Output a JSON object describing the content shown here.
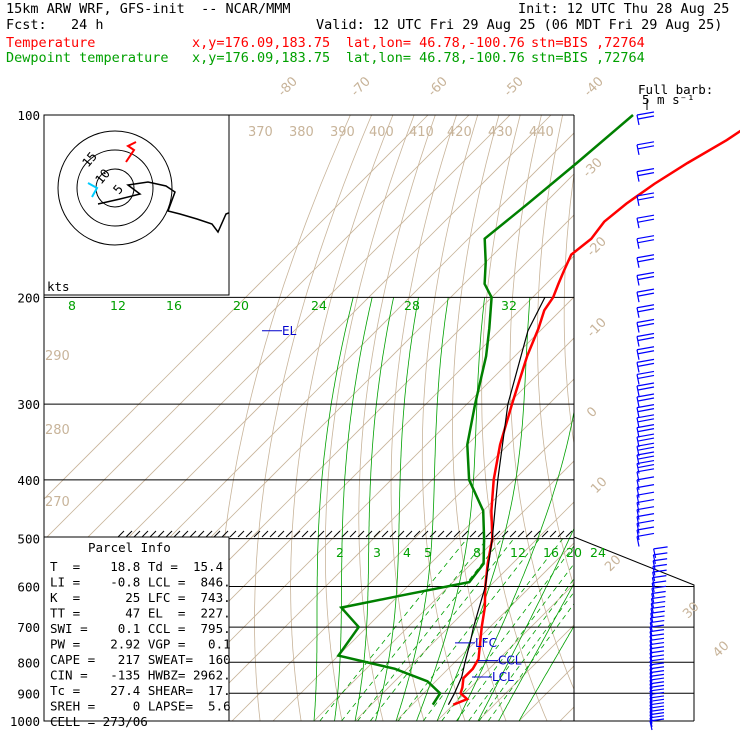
{
  "header": {
    "model": "15km ARW WRF, GFS-init  -- NCAR/MMM",
    "init": "Init: 12 UTC Thu 28 Aug 25",
    "fcst": "Fcst:   24 h",
    "valid": "Valid: 12 UTC Fri 29 Aug 25 (06 MDT Fri 29 Aug 25)",
    "temp_line": {
      "label": "Temperature",
      "xy": "x,y=176.09,183.75",
      "latlon": "lat,lon= 46.78,-100.76",
      "stn": "stn=BIS ,72764"
    },
    "dew_line": {
      "label": "Dewpoint temperature",
      "xy": "x,y=176.09,183.75",
      "latlon": "lat,lon= 46.78,-100.76",
      "stn": "stn=BIS ,72764"
    }
  },
  "barb_legend": {
    "line1": "Full barb:",
    "line2": "5 m s⁻¹"
  },
  "hodograph": {
    "units": "kts",
    "ring_labels": [
      "5",
      "10",
      "15"
    ]
  },
  "parcel_info": {
    "title": "Parcel Info",
    "rows": [
      "T  =    18.8 Td =  15.4",
      "LI =    -0.8 LCL =  846.",
      "K  =      25 LFC =  743.",
      "TT =      47 EL  =  227.",
      "SWI =    0.1 CCL =  795.",
      "PW =    2.92 VGP =   0.1",
      "CAPE =   217 SWEAT=  160",
      "CIN =   -135 HWBZ= 2962.",
      "Tc =    27.4 SHEAR=  17.",
      "SREH =     0 LAPSE=  5.6",
      "CELL = 273/06"
    ]
  },
  "chart_data": {
    "type": "skew-T log-P sounding",
    "y_axis": {
      "label": "",
      "ticks": [
        100,
        200,
        300,
        400,
        500,
        600,
        700,
        800,
        900,
        1000
      ],
      "scale": "log",
      "range": [
        1000,
        100
      ]
    },
    "isotherm_labels": [
      "-80",
      "-70",
      "-60",
      "-50",
      "-40",
      "-30",
      "-20",
      "-10",
      "0",
      "10",
      "20",
      "30",
      "40"
    ],
    "theta_labels_top": [
      "370",
      "380",
      "390",
      "400",
      "410",
      "420",
      "430",
      "440"
    ],
    "theta_labels_left": [
      "290",
      "280",
      "270"
    ],
    "mixing_ratio_labels_upper": [
      "8",
      "12",
      "16",
      "20",
      "24",
      "28",
      "32"
    ],
    "mixing_ratio_labels_lower": [
      "2",
      "3",
      "4",
      "5",
      "8",
      "12",
      "16",
      "20",
      "24"
    ],
    "colors": {
      "temperature": "#ff0000",
      "dewpoint": "#008000",
      "parcel": "#000000",
      "levels": "#0000cc",
      "mixing_ratio": "#00a000",
      "dry_adiabat": "#c8b49a",
      "wind_barb": "#0000ff"
    },
    "series": [
      {
        "name": "Temperature",
        "points": [
          [
            100,
            -48
          ],
          [
            110,
            -51
          ],
          [
            120,
            -55
          ],
          [
            130,
            -58
          ],
          [
            140,
            -60
          ],
          [
            150,
            -61
          ],
          [
            160,
            -60
          ],
          [
            170,
            -61
          ],
          [
            180,
            -59
          ],
          [
            190,
            -57
          ],
          [
            200,
            -55
          ],
          [
            210,
            -54
          ],
          [
            225,
            -51
          ],
          [
            250,
            -47
          ],
          [
            300,
            -39
          ],
          [
            350,
            -32
          ],
          [
            400,
            -25
          ],
          [
            450,
            -18
          ],
          [
            500,
            -11
          ],
          [
            550,
            -6
          ],
          [
            600,
            -1
          ],
          [
            650,
            4
          ],
          [
            700,
            8
          ],
          [
            750,
            12
          ],
          [
            790,
            15
          ],
          [
            820,
            16
          ],
          [
            850,
            16
          ],
          [
            880,
            18
          ],
          [
            900,
            19
          ],
          [
            920,
            22
          ],
          [
            940,
            20
          ]
        ]
      },
      {
        "name": "Dewpoint temperature",
        "points": [
          [
            100,
            -80
          ],
          [
            120,
            -82
          ],
          [
            140,
            -84
          ],
          [
            160,
            -86
          ],
          [
            175,
            -80
          ],
          [
            190,
            -75
          ],
          [
            200,
            -70
          ],
          [
            225,
            -63
          ],
          [
            250,
            -57
          ],
          [
            300,
            -48
          ],
          [
            350,
            -40
          ],
          [
            400,
            -31
          ],
          [
            450,
            -20
          ],
          [
            500,
            -13
          ],
          [
            550,
            -7
          ],
          [
            590,
            -6
          ],
          [
            620,
            -19
          ],
          [
            650,
            -31
          ],
          [
            700,
            -22
          ],
          [
            780,
            -20
          ],
          [
            820,
            -3
          ],
          [
            860,
            8
          ],
          [
            900,
            14
          ],
          [
            940,
            15
          ]
        ]
      },
      {
        "name": "Parcel",
        "points": [
          [
            940,
            18.8
          ],
          [
            900,
            17.5
          ],
          [
            846,
            15.3
          ],
          [
            800,
            12.5
          ],
          [
            743,
            9
          ],
          [
            700,
            6
          ],
          [
            600,
            -1
          ],
          [
            500,
            -11
          ],
          [
            400,
            -24
          ],
          [
            300,
            -40
          ],
          [
            227,
            -53
          ],
          [
            200,
            -57
          ]
        ]
      }
    ],
    "level_markers": [
      {
        "label": "EL",
        "p": 227
      },
      {
        "label": "LFC",
        "p": 743
      },
      {
        "label": "CCL",
        "p": 795
      },
      {
        "label": "LCL",
        "p": 846
      }
    ]
  }
}
